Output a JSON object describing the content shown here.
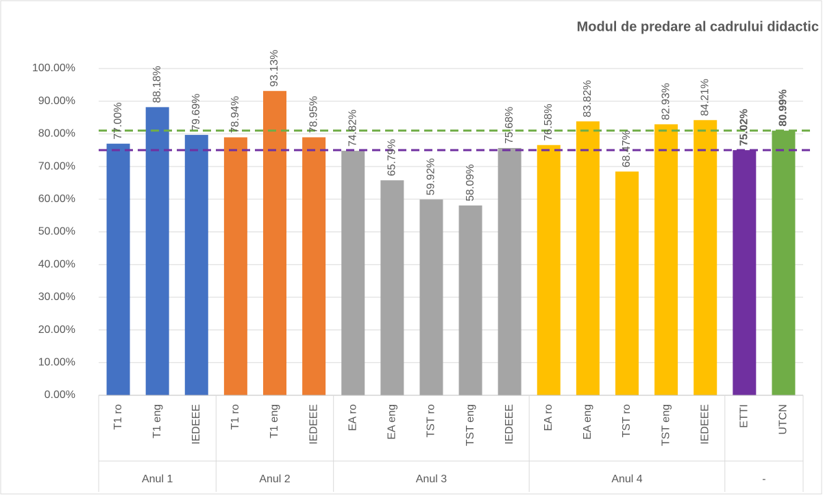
{
  "chart_data": {
    "type": "bar",
    "title": "Modul de predare al cadrului didactic",
    "categories": [
      "T1 ro",
      "T1 eng",
      "IEDEEE",
      "T1 ro",
      "T1 eng",
      "IEDEEE",
      "EA ro",
      "EA eng",
      "TST ro",
      "TST eng",
      "IEDEEE",
      "EA ro",
      "EA eng",
      "TST ro",
      "TST eng",
      "IEDEEE",
      "ETTI",
      "UTCN"
    ],
    "groups": [
      {
        "label": "Anul 1",
        "count": 3
      },
      {
        "label": "Anul 2",
        "count": 3
      },
      {
        "label": "Anul 3",
        "count": 5
      },
      {
        "label": "Anul 4",
        "count": 5
      },
      {
        "label": "-",
        "count": 2
      }
    ],
    "values": [
      77.0,
      88.18,
      79.69,
      78.94,
      93.13,
      78.95,
      74.82,
      65.79,
      59.92,
      58.09,
      75.68,
      76.58,
      83.82,
      68.47,
      82.93,
      84.21,
      75.02,
      80.99
    ],
    "value_labels": [
      "77.00%",
      "88.18%",
      "79.69%",
      "78.94%",
      "93.13%",
      "78.95%",
      "74.82%",
      "65.79%",
      "59.92%",
      "58.09%",
      "75.68%",
      "76.58%",
      "83.82%",
      "68.47%",
      "82.93%",
      "84.21%",
      "75.02%",
      "80.99%"
    ],
    "bold_labels": [
      false,
      false,
      false,
      false,
      false,
      false,
      false,
      false,
      false,
      false,
      false,
      false,
      false,
      false,
      false,
      false,
      true,
      true
    ],
    "colors": [
      "#4472c4",
      "#4472c4",
      "#4472c4",
      "#ed7d31",
      "#ed7d31",
      "#ed7d31",
      "#a5a5a5",
      "#a5a5a5",
      "#a5a5a5",
      "#a5a5a5",
      "#a5a5a5",
      "#ffc000",
      "#ffc000",
      "#ffc000",
      "#ffc000",
      "#ffc000",
      "#7030a0",
      "#70ad47"
    ],
    "reference_lines": [
      {
        "value": 75.02,
        "color": "#7030a0"
      },
      {
        "value": 80.99,
        "color": "#70ad47"
      }
    ],
    "ylim": [
      0,
      100
    ],
    "yticks": [
      {
        "value": 0,
        "label": "0.00%"
      },
      {
        "value": 10,
        "label": "10.00%"
      },
      {
        "value": 20,
        "label": "20.00%"
      },
      {
        "value": 30,
        "label": "30.00%"
      },
      {
        "value": 40,
        "label": "40.00%"
      },
      {
        "value": 50,
        "label": "50.00%"
      },
      {
        "value": 60,
        "label": "60.00%"
      },
      {
        "value": 70,
        "label": "70.00%"
      },
      {
        "value": 80,
        "label": "80.00%"
      },
      {
        "value": 90,
        "label": "90.00%"
      },
      {
        "value": 100,
        "label": "100.00%"
      }
    ],
    "grid": true
  }
}
